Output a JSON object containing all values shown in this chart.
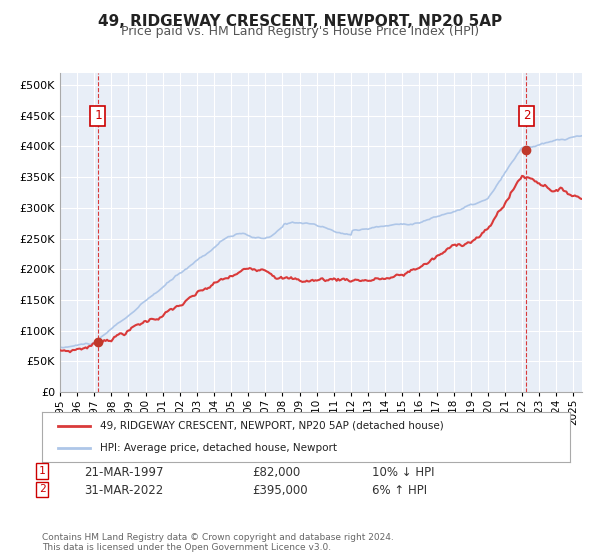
{
  "title": "49, RIDGEWAY CRESCENT, NEWPORT, NP20 5AP",
  "subtitle": "Price paid vs. HM Land Registry's House Price Index (HPI)",
  "ylabel_ticks": [
    "£0",
    "£50K",
    "£100K",
    "£150K",
    "£200K",
    "£250K",
    "£300K",
    "£350K",
    "£400K",
    "£450K",
    "£500K"
  ],
  "ytick_values": [
    0,
    50000,
    100000,
    150000,
    200000,
    250000,
    300000,
    350000,
    400000,
    450000,
    500000
  ],
  "ylim": [
    0,
    520000
  ],
  "xlim_start": 1995.0,
  "xlim_end": 2025.5,
  "hpi_color": "#aec6e8",
  "price_color": "#d93a3a",
  "marker_color": "#c0392b",
  "vline_color": "#d93a3a",
  "bg_color": "#f0f4fa",
  "plot_bg": "#e8eef7",
  "grid_color": "#ffffff",
  "transaction1": {
    "date": "21-MAR-1997",
    "price": 82000,
    "pct": "10%",
    "direction": "↓",
    "label": "1",
    "year": 1997.22
  },
  "transaction2": {
    "date": "31-MAR-2022",
    "price": 395000,
    "pct": "6%",
    "direction": "↑",
    "label": "2",
    "year": 2022.25
  },
  "legend_label1": "49, RIDGEWAY CRESCENT, NEWPORT, NP20 5AP (detached house)",
  "legend_label2": "HPI: Average price, detached house, Newport",
  "footnote1": "Contains HM Land Registry data © Crown copyright and database right 2024.",
  "footnote2": "This data is licensed under the Open Government Licence v3.0."
}
